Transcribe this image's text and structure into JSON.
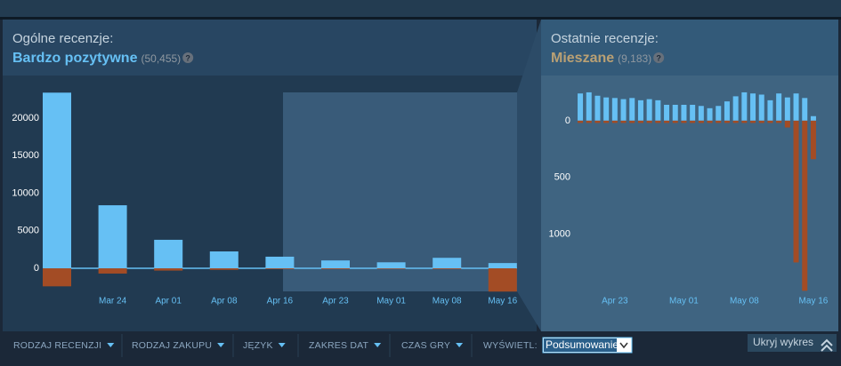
{
  "chart_data": [
    {
      "type": "bar",
      "title": "Ogólne recenzje:",
      "rating": "Bardzo pozytywne",
      "rating_color": "#66c0f4",
      "review_count": "(50,455)",
      "categories": [
        null,
        "Mar 24",
        "Apr 01",
        "Apr 08",
        "Apr 16",
        "Apr 23",
        "May 01",
        "May 08",
        "May 16"
      ],
      "series": [
        {
          "color": "#66c0f4",
          "values": [
            23400,
            8400,
            3800,
            2250,
            1550,
            1050,
            800,
            1400,
            700
          ]
        },
        {
          "color": "#a34c25",
          "values": [
            -2400,
            -700,
            -300,
            -200,
            -100,
            -100,
            -80,
            -100,
            -3100
          ]
        }
      ],
      "ylim": [
        -3900,
        24500
      ],
      "yticks": [
        0,
        5000,
        10000,
        15000,
        20000
      ]
    },
    {
      "type": "bar",
      "title": "Ostatnie recenzje:",
      "rating": "Mieszane",
      "rating_color": "#b9a074",
      "review_count": "(9,183)",
      "categories": [
        null,
        null,
        null,
        null,
        "Apr 23",
        null,
        null,
        null,
        null,
        null,
        null,
        null,
        "May 01",
        null,
        null,
        null,
        null,
        null,
        null,
        "May 08",
        null,
        null,
        null,
        null,
        null,
        null,
        null,
        "May 16"
      ],
      "series": [
        {
          "color": "#66c0f4",
          "values": [
            240,
            250,
            220,
            205,
            200,
            190,
            200,
            180,
            190,
            180,
            140,
            140,
            140,
            140,
            130,
            110,
            130,
            170,
            215,
            250,
            240,
            230,
            180,
            240,
            205,
            240,
            200,
            40
          ]
        },
        {
          "color": "#a34c25",
          "values": [
            -20,
            -20,
            -20,
            -20,
            -20,
            -20,
            -20,
            -20,
            -20,
            -20,
            -20,
            -20,
            -20,
            -20,
            -20,
            -20,
            -20,
            -20,
            -20,
            -20,
            -20,
            -20,
            -20,
            -20,
            -60,
            -1250,
            -1500,
            -340
          ]
        }
      ],
      "ylim": [
        -1560,
        320
      ],
      "yticks": [
        0,
        {
          "value": -500,
          "label": "500"
        },
        {
          "value": -1000,
          "label": "1000"
        }
      ]
    }
  ],
  "filters": {
    "items": [
      "RODZAJ RECENZJI",
      "RODZAJ ZAKUPU",
      "JĘZYK",
      "ZAKRES DAT",
      "CZAS GRY"
    ],
    "display_label": "WYŚWIETL:",
    "display_value": "Podsumowanie",
    "hide_button": "Ukryj wykres"
  }
}
